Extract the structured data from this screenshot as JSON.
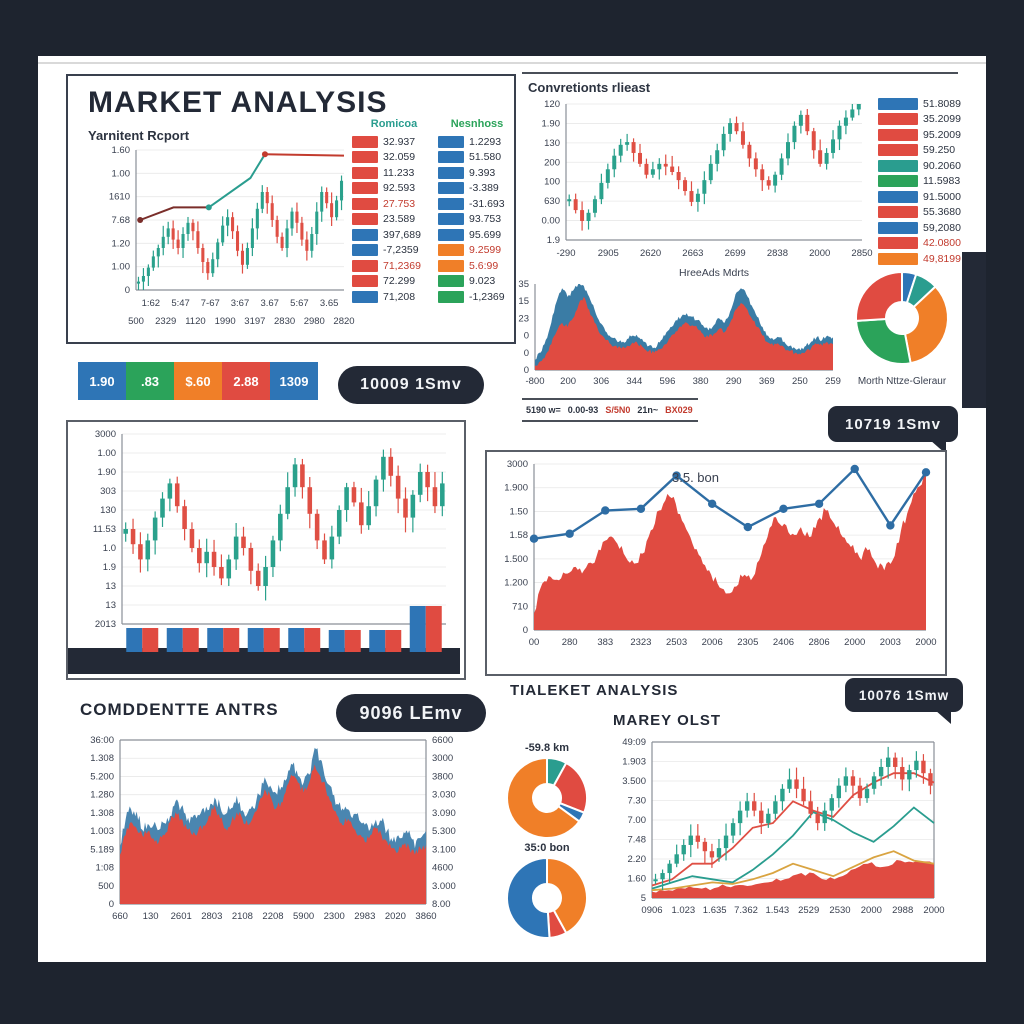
{
  "page": {
    "bg": "#1e242f",
    "sheet_bg": "#ffffff"
  },
  "colors": {
    "red": "#e04b41",
    "blue": "#2e75b6",
    "teal": "#2a9d8f",
    "green": "#2ba35a",
    "orange": "#f07f28",
    "navy": "#232936",
    "red_text": "#c23b2e",
    "dark_text": "#2c3340",
    "line_blue": "#2e6da4",
    "area_blue": "#3a7ca5",
    "spike_blue": "#4a86b0",
    "candle_up": "#2aa18c",
    "candle_down": "#df4f44",
    "tan": "#d9a441",
    "maroon": "#7a2e2a"
  },
  "header": {
    "title": "MARKET ANALYSIS",
    "subtitle": "Yarnitent Rcport"
  },
  "sections": {
    "tr_title": "Convretionts rlieast",
    "bl_title": "COMDDENTTE ANTRS",
    "br_heading": "TIALEKET ANALYSIS",
    "br_subtitle": "MAREY OLST"
  },
  "badges": {
    "mid_left_pill": "10009 1Smv",
    "mid_right_bubble": "10719 1Smv",
    "bottom_left_pill": "9096 LEmv",
    "bottom_right_bubble": "10076 1Smw"
  },
  "color_strip": [
    {
      "color": "blue",
      "label": "1.90"
    },
    {
      "color": "green",
      "label": ".83"
    },
    {
      "color": "orange",
      "label": "$.60"
    },
    {
      "color": "red",
      "label": "2.88"
    },
    {
      "color": "blue",
      "label": "1309"
    }
  ],
  "strip_table": [
    {
      "text": "5190 w=",
      "tone": "dark"
    },
    {
      "text": "0.00-93",
      "tone": "dark"
    },
    {
      "text": "S/5N0",
      "tone": "red"
    },
    {
      "text": "21n~",
      "tone": "dark"
    },
    {
      "text": "BX029",
      "tone": "red"
    }
  ],
  "chart_data": {
    "tl": {
      "type": "candlestick",
      "title": "MARKET ANALYSIS",
      "yticks": [
        "1.60",
        "1.00",
        "1610",
        "7.68",
        "1.20",
        "1.00",
        "0"
      ],
      "xticks_row1": [
        "1:62",
        "5:47",
        "7-67",
        "3:67",
        "3.67",
        "5:67",
        "3.65"
      ],
      "xticks_row2": [
        "500",
        "2329",
        "1120",
        "1990",
        "3197",
        "2830",
        "2980",
        "2820"
      ],
      "closes": [
        0.06,
        0.1,
        0.16,
        0.24,
        0.3,
        0.38,
        0.44,
        0.36,
        0.3,
        0.4,
        0.48,
        0.42,
        0.3,
        0.2,
        0.12,
        0.22,
        0.34,
        0.46,
        0.52,
        0.42,
        0.28,
        0.18,
        0.3,
        0.44,
        0.58,
        0.7,
        0.62,
        0.5,
        0.38,
        0.3,
        0.44,
        0.56,
        0.48,
        0.36,
        0.28,
        0.4,
        0.56,
        0.7,
        0.62,
        0.52,
        0.64,
        0.78
      ],
      "overlay": [
        {
          "color": "maroon",
          "pts": [
            [
              0.02,
              0.5
            ],
            [
              0.18,
              0.59
            ],
            [
              0.35,
              0.59
            ]
          ]
        },
        {
          "color": "teal",
          "pts": [
            [
              0.35,
              0.59
            ],
            [
              0.55,
              0.8
            ],
            [
              0.62,
              0.97
            ]
          ]
        },
        {
          "color": "red_text",
          "pts": [
            [
              0.62,
              0.97
            ],
            [
              1.0,
              0.96
            ]
          ]
        }
      ],
      "legends": [
        {
          "header": "Romicoa",
          "header_color": "teal",
          "rows": [
            {
              "swatch": "red",
              "value": "32.937",
              "tone": "dark"
            },
            {
              "swatch": "red",
              "value": "32.059",
              "tone": "dark"
            },
            {
              "swatch": "red",
              "value": "11.233",
              "tone": "dark"
            },
            {
              "swatch": "red",
              "value": "92.593",
              "tone": "dark"
            },
            {
              "swatch": "red",
              "value": "27.753",
              "tone": "red"
            },
            {
              "swatch": "red",
              "value": "23.589",
              "tone": "dark"
            },
            {
              "swatch": "blue",
              "value": "397,689",
              "tone": "dark"
            },
            {
              "swatch": "blue",
              "value": "-7,2359",
              "tone": "dark"
            },
            {
              "swatch": "red",
              "value": "71,2369",
              "tone": "red"
            },
            {
              "swatch": "red",
              "value": "72.299",
              "tone": "dark"
            },
            {
              "swatch": "blue",
              "value": "71,208",
              "tone": "dark"
            }
          ]
        },
        {
          "header": "Nesnhoss",
          "header_color": "green",
          "rows": [
            {
              "swatch": "blue",
              "value": "1.2293",
              "tone": "dark"
            },
            {
              "swatch": "blue",
              "value": "51.580",
              "tone": "dark"
            },
            {
              "swatch": "blue",
              "value": "9.393",
              "tone": "dark"
            },
            {
              "swatch": "blue",
              "value": "-3.389",
              "tone": "dark"
            },
            {
              "swatch": "blue",
              "value": "-31.693",
              "tone": "dark"
            },
            {
              "swatch": "blue",
              "value": "93.753",
              "tone": "dark"
            },
            {
              "swatch": "blue",
              "value": "95.699",
              "tone": "dark"
            },
            {
              "swatch": "orange",
              "value": "9.2599",
              "tone": "red"
            },
            {
              "swatch": "orange",
              "value": "5.6:99",
              "tone": "red"
            },
            {
              "swatch": "green",
              "value": "9.023",
              "tone": "dark"
            },
            {
              "swatch": "green",
              "value": "-1,2369",
              "tone": "dark"
            }
          ]
        }
      ]
    },
    "tr": {
      "type": "candlestick",
      "title": "Convretionts rlieast",
      "xlabel": "HreeAds Mdrts",
      "yticks": [
        "120",
        "1.90",
        "130",
        "200",
        "100",
        "630",
        "0.00",
        "1.9"
      ],
      "xticks": [
        "-290",
        "2905",
        "2620",
        "2663",
        "2699",
        "2838",
        "2000",
        "2850"
      ],
      "closes": [
        0.3,
        0.22,
        0.14,
        0.2,
        0.3,
        0.42,
        0.52,
        0.62,
        0.7,
        0.72,
        0.64,
        0.56,
        0.48,
        0.52,
        0.56,
        0.54,
        0.5,
        0.44,
        0.36,
        0.28,
        0.34,
        0.44,
        0.56,
        0.66,
        0.78,
        0.86,
        0.8,
        0.7,
        0.6,
        0.52,
        0.44,
        0.4,
        0.48,
        0.6,
        0.72,
        0.84,
        0.92,
        0.8,
        0.66,
        0.56,
        0.64,
        0.74,
        0.84,
        0.9,
        0.96,
        1.0
      ],
      "legend": [
        {
          "swatch": "blue",
          "value": "51.8089",
          "tone": "dark"
        },
        {
          "swatch": "red",
          "value": "35.2099",
          "tone": "dark"
        },
        {
          "swatch": "red",
          "value": "95.2009",
          "tone": "dark"
        },
        {
          "swatch": "red",
          "value": "59.250",
          "tone": "dark"
        },
        {
          "swatch": "teal",
          "value": "90.2060",
          "tone": "dark"
        },
        {
          "swatch": "green",
          "value": "11.5983",
          "tone": "dark"
        },
        {
          "swatch": "blue",
          "value": "91.5000",
          "tone": "dark"
        },
        {
          "swatch": "red",
          "value": "55.3680",
          "tone": "dark"
        },
        {
          "swatch": "blue",
          "value": "59,2080",
          "tone": "dark"
        },
        {
          "swatch": "red",
          "value": "42.0800",
          "tone": "red"
        },
        {
          "swatch": "orange",
          "value": "49,8199",
          "tone": "red"
        }
      ]
    },
    "ta": {
      "type": "stacked-area",
      "yticks": [
        "35",
        "15",
        "23",
        "0",
        "0",
        "0"
      ],
      "xticks": [
        "-800",
        "200",
        "306",
        "344",
        "596",
        "380",
        "290",
        "369",
        "250",
        "259"
      ],
      "blue": [
        0.12,
        0.2,
        0.35,
        0.55,
        0.8,
        0.95,
        0.85,
        0.92,
        1.0,
        0.98,
        0.85,
        0.7,
        0.55,
        0.45,
        0.38,
        0.35,
        0.32,
        0.36,
        0.4,
        0.38,
        0.33,
        0.28,
        0.26,
        0.32,
        0.4,
        0.5,
        0.58,
        0.62,
        0.66,
        0.62,
        0.58,
        0.52,
        0.46,
        0.52,
        0.6,
        0.55,
        0.68,
        0.88,
        0.95,
        0.88,
        0.75,
        0.62,
        0.5,
        0.4,
        0.35,
        0.38,
        0.33,
        0.28,
        0.25,
        0.23,
        0.28,
        0.33,
        0.38,
        0.35,
        0.4,
        0.38
      ],
      "red": [
        0.05,
        0.1,
        0.18,
        0.3,
        0.45,
        0.55,
        0.5,
        0.6,
        0.75,
        0.85,
        0.7,
        0.55,
        0.42,
        0.35,
        0.3,
        0.28,
        0.25,
        0.28,
        0.32,
        0.3,
        0.26,
        0.22,
        0.2,
        0.24,
        0.3,
        0.38,
        0.45,
        0.5,
        0.55,
        0.52,
        0.48,
        0.42,
        0.38,
        0.42,
        0.48,
        0.44,
        0.55,
        0.7,
        0.78,
        0.72,
        0.6,
        0.5,
        0.4,
        0.32,
        0.28,
        0.3,
        0.26,
        0.22,
        0.2,
        0.18,
        0.22,
        0.26,
        0.3,
        0.28,
        0.32,
        0.3
      ]
    },
    "donut_market": {
      "type": "pie",
      "caption": "Morth Nttze-Gleraur",
      "slices": [
        {
          "color": "blue",
          "value": 5
        },
        {
          "color": "teal",
          "value": 8
        },
        {
          "color": "orange",
          "value": 34
        },
        {
          "color": "green",
          "value": 27
        },
        {
          "color": "red",
          "value": 26
        }
      ]
    },
    "ml": {
      "type": "candlestick",
      "yticks": [
        "3000",
        "1.00",
        "1.90",
        "303",
        "130",
        "11.53",
        "1.0",
        "1.9",
        "13",
        "13",
        "2013"
      ],
      "closes": [
        0.5,
        0.42,
        0.34,
        0.44,
        0.56,
        0.66,
        0.74,
        0.62,
        0.5,
        0.4,
        0.32,
        0.38,
        0.3,
        0.24,
        0.34,
        0.46,
        0.4,
        0.28,
        0.2,
        0.3,
        0.44,
        0.58,
        0.72,
        0.84,
        0.72,
        0.58,
        0.44,
        0.34,
        0.46,
        0.6,
        0.72,
        0.64,
        0.52,
        0.62,
        0.76,
        0.88,
        0.78,
        0.66,
        0.56,
        0.68,
        0.8,
        0.72,
        0.62,
        0.74
      ],
      "volume_heights": [
        24,
        24,
        24,
        24,
        24,
        22,
        22,
        46
      ]
    },
    "mr": {
      "type": "area-line",
      "annotation": "3.5. bon",
      "yticks": [
        "3000",
        "1.900",
        "1.50",
        "1.58",
        "1.500",
        "1.200",
        "710",
        "0"
      ],
      "xticks": [
        "00",
        "280",
        "383",
        "2323",
        "2503",
        "2006",
        "2305",
        "2406",
        "2806",
        "2000",
        "2003",
        "2000"
      ],
      "area": [
        0.1,
        0.28,
        0.32,
        0.3,
        0.34,
        0.38,
        0.36,
        0.4,
        0.48,
        0.56,
        0.52,
        0.44,
        0.4,
        0.46,
        0.6,
        0.72,
        0.82,
        0.76,
        0.64,
        0.52,
        0.44,
        0.36,
        0.28,
        0.22,
        0.26,
        0.32,
        0.3,
        0.42,
        0.56,
        0.68,
        0.64,
        0.58,
        0.62,
        0.56,
        0.66,
        0.72,
        0.64,
        0.56,
        0.5,
        0.44,
        0.48,
        0.4,
        0.36,
        0.42,
        0.6,
        0.74,
        0.86,
        0.95
      ],
      "line": [
        0.55,
        0.58,
        0.72,
        0.73,
        0.93,
        0.76,
        0.62,
        0.73,
        0.76,
        0.97,
        0.63,
        0.95
      ]
    },
    "bl": {
      "type": "area",
      "yticks_left": [
        "36:00",
        "1.308",
        "5.200",
        "1.280",
        "1.308",
        "1.003",
        "5.189",
        "1:08",
        "500",
        "0"
      ],
      "yticks_right": [
        "6600",
        "3000",
        "3800",
        "3.030",
        "3.090",
        "5.300",
        "3.100",
        "4600",
        "3.000",
        "8.00"
      ],
      "xticks": [
        "660",
        "130",
        "2601",
        "2803",
        "2108",
        "2208",
        "5900",
        "2300",
        "2983",
        "2020",
        "3860"
      ],
      "red": [
        0.3,
        0.42,
        0.5,
        0.46,
        0.42,
        0.44,
        0.4,
        0.38,
        0.42,
        0.5,
        0.56,
        0.52,
        0.46,
        0.42,
        0.44,
        0.48,
        0.54,
        0.6,
        0.52,
        0.46,
        0.5,
        0.56,
        0.52,
        0.48,
        0.54,
        0.62,
        0.7,
        0.66,
        0.58,
        0.62,
        0.72,
        0.78,
        0.74,
        0.68,
        0.74,
        0.85,
        0.78,
        0.7,
        0.62,
        0.54,
        0.48,
        0.52,
        0.46,
        0.42,
        0.38,
        0.42,
        0.46,
        0.42,
        0.38,
        0.34,
        0.32,
        0.36,
        0.34,
        0.3,
        0.34,
        0.36
      ],
      "spike": 0.08
    },
    "donut_km": {
      "type": "pie",
      "label": "-59.8 km",
      "slices": [
        {
          "color": "teal",
          "value": 8
        },
        {
          "color": "red",
          "value": 23
        },
        {
          "color": "blue",
          "value": 4
        },
        {
          "color": "orange",
          "value": 65
        }
      ]
    },
    "donut_bon": {
      "type": "pie",
      "label": "35:0 bon",
      "slices": [
        {
          "color": "orange",
          "value": 42
        },
        {
          "color": "red",
          "value": 7
        },
        {
          "color": "blue",
          "value": 51
        }
      ]
    },
    "br": {
      "type": "candlestick-multi",
      "yticks": [
        "49:09",
        "1.903",
        "3.500",
        "7.30",
        "7.00",
        "7.48",
        "2.20",
        "1.60",
        "5"
      ],
      "xticks": [
        "0906",
        "1.023",
        "1.635",
        "7.362",
        "1.543",
        "2529",
        "2530",
        "2000",
        "2988",
        "2000"
      ],
      "closes": [
        0.12,
        0.16,
        0.22,
        0.28,
        0.34,
        0.4,
        0.36,
        0.3,
        0.26,
        0.32,
        0.4,
        0.48,
        0.56,
        0.62,
        0.56,
        0.48,
        0.54,
        0.62,
        0.7,
        0.76,
        0.7,
        0.62,
        0.54,
        0.48,
        0.56,
        0.64,
        0.72,
        0.78,
        0.72,
        0.64,
        0.7,
        0.78,
        0.84,
        0.9,
        0.84,
        0.76,
        0.82,
        0.88,
        0.8,
        0.72
      ],
      "lines": [
        {
          "color": "candle_down",
          "values": [
            0.08,
            0.12,
            0.22,
            0.22,
            0.32,
            0.45,
            0.48,
            0.62,
            0.56,
            0.52,
            0.66,
            0.74,
            0.8,
            0.8,
            0.74
          ]
        },
        {
          "color": "teal",
          "values": [
            0.06,
            0.1,
            0.14,
            0.12,
            0.1,
            0.18,
            0.28,
            0.4,
            0.55,
            0.5,
            0.42,
            0.36,
            0.46,
            0.58,
            0.48
          ]
        },
        {
          "color": "tan",
          "values": [
            0.05,
            0.06,
            0.08,
            0.1,
            0.09,
            0.12,
            0.16,
            0.22,
            0.18,
            0.14,
            0.2,
            0.26,
            0.3,
            0.24,
            0.22
          ]
        }
      ],
      "area": [
        0.04,
        0.05,
        0.06,
        0.06,
        0.07,
        0.08,
        0.08,
        0.1,
        0.12,
        0.16,
        0.14,
        0.12,
        0.18,
        0.22,
        0.2,
        0.24,
        0.24,
        0.22
      ]
    }
  }
}
